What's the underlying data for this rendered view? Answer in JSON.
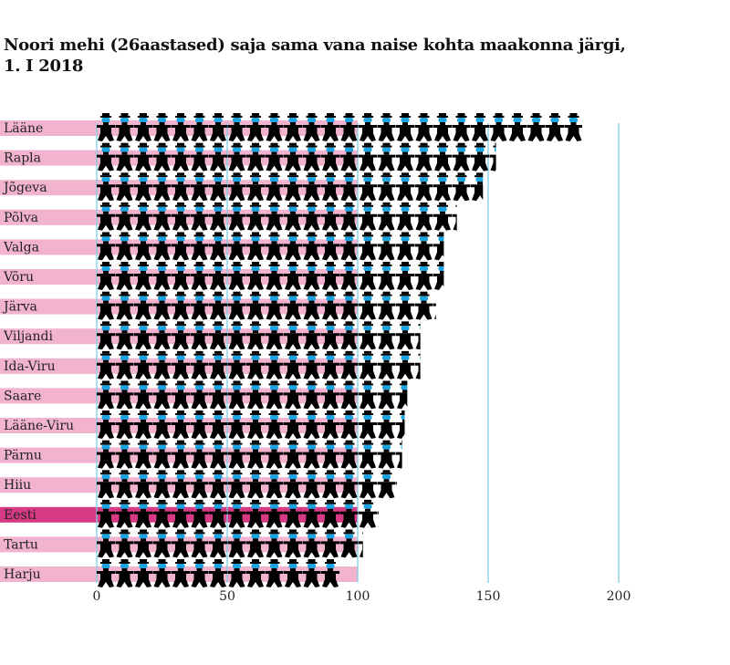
{
  "chart_data": {
    "type": "bar",
    "title": "Noori mehi (26aastased) saja sama vana naise kohta  maakonna järgi,",
    "subtitle": "1. I 2018",
    "categories": [
      "Lääne",
      "Rapla",
      "Jõgeva",
      "Põlva",
      "Valga",
      "Võru",
      "Järva",
      "Viljandi",
      "Ida-Viru",
      "Saare",
      "Lääne-Viru",
      "Pärnu",
      "Hiiu",
      "Eesti",
      "Tartu",
      "Harju"
    ],
    "values": [
      186,
      153,
      148,
      138,
      133,
      133,
      130,
      124,
      124,
      119,
      118,
      117,
      115,
      108,
      102,
      93
    ],
    "reference_value": 100,
    "xlim": [
      0,
      200
    ],
    "xticks": [
      "0",
      "50",
      "100",
      "150",
      "200"
    ],
    "colors": {
      "bar": "#f2b3cf",
      "highlight": "#d63a84",
      "icon_body": "#000000",
      "icon_face": "#1aa3e0",
      "grid": "#7fd0e6"
    },
    "highlight": "Eesti",
    "icon": "man-figure-icon"
  }
}
